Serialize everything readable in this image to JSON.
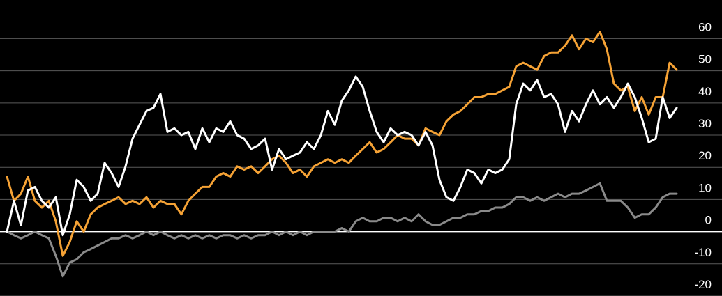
{
  "chart_data": {
    "type": "line",
    "ylim": [
      -20,
      72
    ],
    "yticks": [
      -20,
      -10,
      0,
      10,
      20,
      30,
      40,
      50,
      60
    ],
    "grid": true,
    "series": [
      {
        "color": "#8a8a8a",
        "values": [
          0,
          -1.1,
          -2.1,
          -1.1,
          0,
          -1.1,
          -2.1,
          -7.5,
          -13.9,
          -9.6,
          -8.6,
          -6.4,
          -5.4,
          -4.3,
          -3.2,
          -2.1,
          -2.1,
          -1.1,
          -2.1,
          -1.1,
          0,
          -1.1,
          0,
          -1.1,
          -2.1,
          -1.1,
          -2.1,
          -1.1,
          -2.1,
          -1.1,
          -2.1,
          -1.1,
          -1.1,
          -2.1,
          -1.1,
          -2.1,
          -1.1,
          -1.1,
          0,
          -1.1,
          0,
          -1.1,
          0,
          -1.1,
          0,
          0,
          0,
          0,
          1.1,
          0,
          3.2,
          4.3,
          3.2,
          3.2,
          4.3,
          4.3,
          3.2,
          4.3,
          3.2,
          5.4,
          3.2,
          2.1,
          2.1,
          3.2,
          4.3,
          4.3,
          5.4,
          5.4,
          6.4,
          6.4,
          7.5,
          7.5,
          8.6,
          10.7,
          10.7,
          9.6,
          10.7,
          9.6,
          10.7,
          11.8,
          10.7,
          11.8,
          11.8,
          12.8,
          13.9,
          15.0,
          9.6,
          9.6,
          9.6,
          7.5,
          4.3,
          5.4,
          5.4,
          7.5,
          10.7,
          11.8,
          11.8
        ]
      },
      {
        "color": "#f5a235",
        "values": [
          17.1,
          9.6,
          11.8,
          17.1,
          9.6,
          7.5,
          9.6,
          3.2,
          -7.5,
          -3.2,
          3.2,
          0,
          5.4,
          7.5,
          8.6,
          9.6,
          10.7,
          8.6,
          9.6,
          8.6,
          10.7,
          7.5,
          9.6,
          8.6,
          8.6,
          5.4,
          9.6,
          11.8,
          13.9,
          13.9,
          17.1,
          18.2,
          17.1,
          20.3,
          19.3,
          20.3,
          18.2,
          20.3,
          22.5,
          23.6,
          21.4,
          18.2,
          19.3,
          17.1,
          20.3,
          21.4,
          22.5,
          21.4,
          22.5,
          21.4,
          23.6,
          25.7,
          27.8,
          24.6,
          25.7,
          27.8,
          30.0,
          28.9,
          28.9,
          26.8,
          32.1,
          31.0,
          30.0,
          34.3,
          36.4,
          37.5,
          39.6,
          41.8,
          41.8,
          42.8,
          42.8,
          43.9,
          45.0,
          51.4,
          52.5,
          51.4,
          50.3,
          54.6,
          55.7,
          55.7,
          57.8,
          61.0,
          56.7,
          60.0,
          58.9,
          62.1,
          56.7,
          46.0,
          43.9,
          45.0,
          37.5,
          41.8,
          36.4,
          41.8,
          41.8,
          52.5,
          50.3
        ]
      },
      {
        "color": "#ffffff",
        "values": [
          0,
          9.6,
          2,
          12.8,
          13.9,
          9.6,
          7.5,
          10.7,
          -1.1,
          5.4,
          16.1,
          13.9,
          9.6,
          11.8,
          21.4,
          18.2,
          13.9,
          20.3,
          28.9,
          33.2,
          37.5,
          38.5,
          42.8,
          31.0,
          32.1,
          30.0,
          31.0,
          25.7,
          32.1,
          27.8,
          32.1,
          31.0,
          34.3,
          30.0,
          28.9,
          25.7,
          26.8,
          28.9,
          19.3,
          25.7,
          22.5,
          23.6,
          24.6,
          27.8,
          25.7,
          30.0,
          37.5,
          33.2,
          40.7,
          43.9,
          48.2,
          45.0,
          37.5,
          31.0,
          27.8,
          32.1,
          30.0,
          31.0,
          30.0,
          26.8,
          31.0,
          26.8,
          16.1,
          10.7,
          9.6,
          13.9,
          19.3,
          18.2,
          15.0,
          19.3,
          18.2,
          19.3,
          22.5,
          39.6,
          46.0,
          43.9,
          47.1,
          41.8,
          42.8,
          39.6,
          31.0,
          37.5,
          34.3,
          39.6,
          43.9,
          39.6,
          41.8,
          38.5,
          41.8,
          46.0,
          41.8,
          35.3,
          27.8,
          28.9,
          41.8,
          35.3,
          38.5
        ]
      }
    ]
  }
}
